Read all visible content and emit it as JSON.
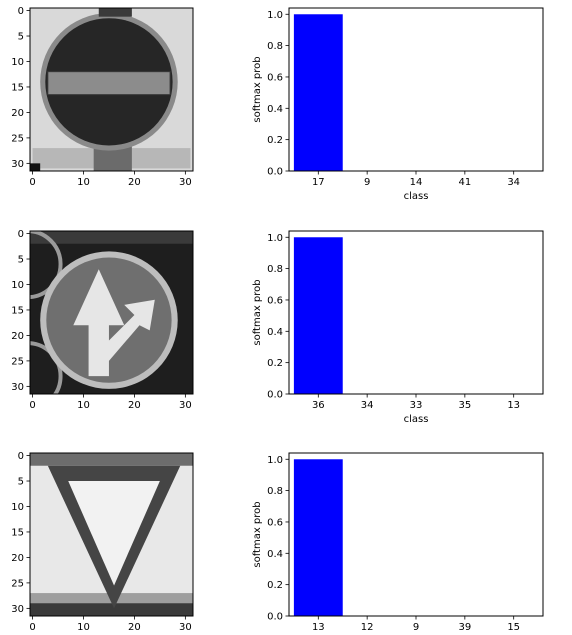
{
  "colors": {
    "bar": "#0000ff",
    "axis": "#000000",
    "background": "#ffffff"
  },
  "panels": [
    {
      "image": {
        "sign": "no-entry",
        "xlim": [
          0,
          31
        ],
        "ylim": [
          31,
          0
        ],
        "xticks": [
          0,
          10,
          20,
          30
        ],
        "yticks": [
          0,
          5,
          10,
          15,
          20,
          25,
          30
        ]
      },
      "chart": {
        "type": "bar",
        "categories": [
          "17",
          "9",
          "14",
          "41",
          "34"
        ],
        "values": [
          1.0,
          0.0,
          0.0,
          0.0,
          0.0
        ],
        "ylabel": "softmax prob",
        "xlabel": "class",
        "ylim": [
          0,
          1.04
        ],
        "yticks": [
          "0.0",
          "0.2",
          "0.4",
          "0.6",
          "0.8",
          "1.0"
        ]
      }
    },
    {
      "image": {
        "sign": "go-straight-or-right",
        "xlim": [
          0,
          31
        ],
        "ylim": [
          31,
          0
        ],
        "xticks": [
          0,
          10,
          20,
          30
        ],
        "yticks": [
          0,
          5,
          10,
          15,
          20,
          25,
          30
        ]
      },
      "chart": {
        "type": "bar",
        "categories": [
          "36",
          "34",
          "33",
          "35",
          "13"
        ],
        "values": [
          1.0,
          0.0,
          0.0,
          0.0,
          0.0
        ],
        "ylabel": "softmax prob",
        "xlabel": "class",
        "ylim": [
          0,
          1.04
        ],
        "yticks": [
          "0.0",
          "0.2",
          "0.4",
          "0.6",
          "0.8",
          "1.0"
        ]
      }
    },
    {
      "image": {
        "sign": "yield",
        "xlim": [
          0,
          31
        ],
        "ylim": [
          31,
          0
        ],
        "xticks": [
          0,
          10,
          20,
          30
        ],
        "yticks": [
          0,
          5,
          10,
          15,
          20,
          25,
          30
        ]
      },
      "chart": {
        "type": "bar",
        "categories": [
          "13",
          "12",
          "9",
          "39",
          "15"
        ],
        "values": [
          1.0,
          0.0,
          0.0,
          0.0,
          0.0
        ],
        "ylabel": "softmax prob",
        "xlabel": "",
        "ylim": [
          0,
          1.04
        ],
        "yticks": [
          "0.0",
          "0.2",
          "0.4",
          "0.6",
          "0.8",
          "1.0"
        ]
      }
    }
  ],
  "chart_data": [
    {
      "type": "bar",
      "categories": [
        "17",
        "9",
        "14",
        "41",
        "34"
      ],
      "values": [
        1.0,
        0.0,
        0.0,
        0.0,
        0.0
      ],
      "ylabel": "softmax prob",
      "xlabel": "class",
      "ylim": [
        0,
        1.04
      ]
    },
    {
      "type": "bar",
      "categories": [
        "36",
        "34",
        "33",
        "35",
        "13"
      ],
      "values": [
        1.0,
        0.0,
        0.0,
        0.0,
        0.0
      ],
      "ylabel": "softmax prob",
      "xlabel": "class",
      "ylim": [
        0,
        1.04
      ]
    },
    {
      "type": "bar",
      "categories": [
        "13",
        "12",
        "9",
        "39",
        "15"
      ],
      "values": [
        1.0,
        0.0,
        0.0,
        0.0,
        0.0
      ],
      "ylabel": "softmax prob",
      "xlabel": "",
      "ylim": [
        0,
        1.04
      ]
    }
  ]
}
